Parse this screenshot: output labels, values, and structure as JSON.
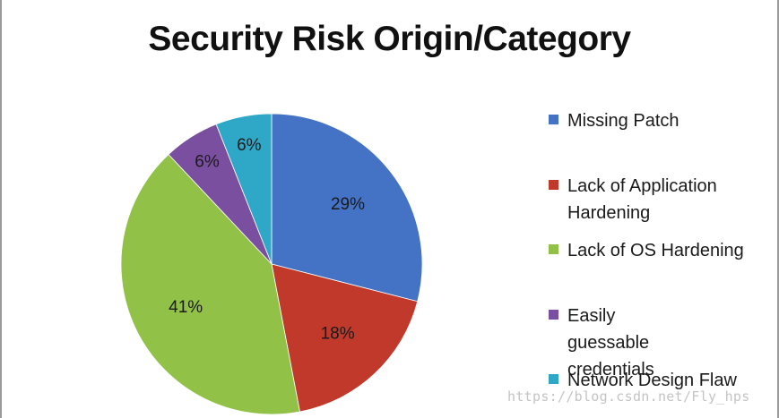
{
  "chart_data": {
    "type": "pie",
    "title": "Security Risk Origin/Category",
    "legend_position": "right",
    "slices": [
      {
        "label": "Missing Patch",
        "value": 29,
        "display": "29%",
        "color": "#4472C4"
      },
      {
        "label": "Lack of Application Hardening",
        "value": 18,
        "display": "18%",
        "color": "#C0392B"
      },
      {
        "label": "Lack of OS Hardening",
        "value": 41,
        "display": "41%",
        "color": "#92C147"
      },
      {
        "label": "Easily guessable credentials",
        "value": 6,
        "display": "6%",
        "color": "#7B4FA0"
      },
      {
        "label": "Network Design Flaw",
        "value": 6,
        "display": "6%",
        "color": "#2FA8C8"
      }
    ]
  },
  "watermark": "https://blog.csdn.net/Fly_hps"
}
